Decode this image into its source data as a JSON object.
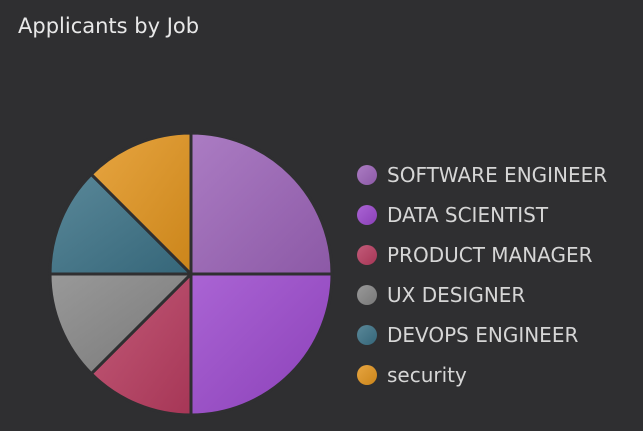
{
  "chart_data": {
    "type": "pie",
    "title": "Applicants by Job",
    "legend_position": "right",
    "categories": [
      "SOFTWARE ENGINEER",
      "DATA SCIENTIST",
      "PRODUCT MANAGER",
      "UX DESIGNER",
      "DEVOPS ENGINEER",
      "security"
    ],
    "values": [
      25,
      25,
      12.5,
      12.5,
      12.5,
      12.5
    ],
    "colors": [
      "#9b63b8",
      "#9a47cc",
      "#b83c5f",
      "#858585",
      "#3b7186",
      "#e2941d"
    ]
  }
}
